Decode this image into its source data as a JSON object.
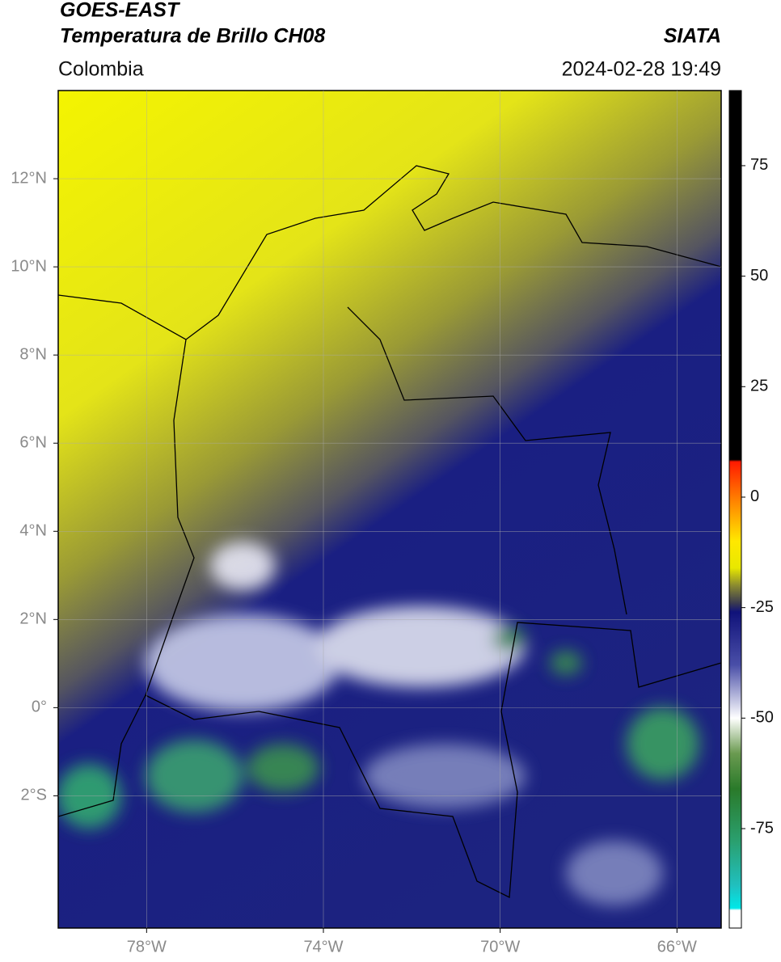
{
  "header": {
    "title": "GOES-EAST",
    "subtitle": "Temperatura de Brillo CH08",
    "source": "SIATA",
    "region": "Colombia",
    "datetime": "2024-02-28 19:49"
  },
  "map": {
    "xlim": [
      -80,
      -65
    ],
    "ylim": [
      -5,
      14
    ],
    "lon_ticks": [
      {
        "value": -78,
        "label": "78°W"
      },
      {
        "value": -74,
        "label": "74°W"
      },
      {
        "value": -70,
        "label": "70°W"
      },
      {
        "value": -66,
        "label": "66°W"
      }
    ],
    "lat_ticks": [
      {
        "value": 12,
        "label": "12°N"
      },
      {
        "value": 10,
        "label": "10°N"
      },
      {
        "value": 8,
        "label": "8°N"
      },
      {
        "value": 6,
        "label": "6°N"
      },
      {
        "value": 4,
        "label": "4°N"
      },
      {
        "value": 2,
        "label": "2°N"
      },
      {
        "value": 0,
        "label": "0°"
      },
      {
        "value": -2,
        "label": "2°S"
      }
    ],
    "grid": true
  },
  "colorbar": {
    "range": [
      -97.5,
      92
    ],
    "ticks": [
      75,
      50,
      25,
      0,
      -25,
      -50,
      -75
    ],
    "stops": [
      {
        "value": 92,
        "color": "#000000"
      },
      {
        "value": 8.5,
        "color": "#000000"
      },
      {
        "value": 8,
        "color": "#ff1a00"
      },
      {
        "value": 0,
        "color": "#ff7a00"
      },
      {
        "value": -10,
        "color": "#ffe800"
      },
      {
        "value": -16,
        "color": "#e8e800"
      },
      {
        "value": -20,
        "color": "#8a8a30"
      },
      {
        "value": -24,
        "color": "#3a3a50"
      },
      {
        "value": -26,
        "color": "#10127a"
      },
      {
        "value": -38,
        "color": "#4a4fa8"
      },
      {
        "value": -50,
        "color": "#ffffff"
      },
      {
        "value": -58,
        "color": "#6a9a50"
      },
      {
        "value": -66,
        "color": "#2a7a2a"
      },
      {
        "value": -78,
        "color": "#2aa070"
      },
      {
        "value": -88,
        "color": "#20c0c0"
      },
      {
        "value": -93,
        "color": "#00e8e8"
      },
      {
        "value": -93.5,
        "color": "#ffffff"
      },
      {
        "value": -97.5,
        "color": "#ffffff"
      }
    ]
  }
}
